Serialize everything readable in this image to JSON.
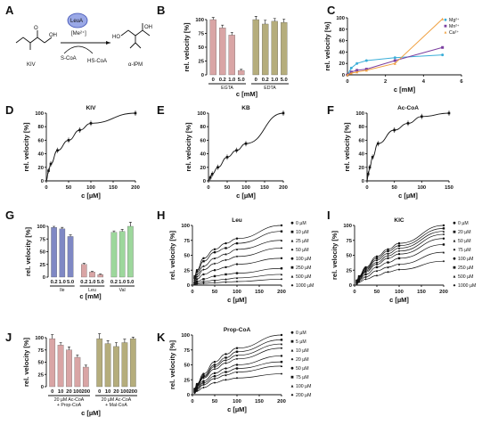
{
  "panel_A": {
    "letter": "A",
    "substrate_label": "KIV",
    "enzyme_label": "LeuA",
    "cofactor_label": "[Me²⁺]",
    "cosubstrate_label": "S-CoA",
    "coproduct_label": "HS-CoA",
    "product_label": "α-IPM",
    "ho_label": "HO",
    "o_label": "O",
    "oh_label": "OH"
  },
  "chart_data": [
    {
      "id": "B",
      "type": "bar",
      "letter": "B",
      "ylabel": "rel. velocity [%]",
      "xlabel": "c [mM]",
      "ylim": [
        0,
        100
      ],
      "yticks": [
        0,
        25,
        50,
        75,
        100
      ],
      "categories": [
        "0",
        "0.2",
        "1.0",
        "5.0",
        "0",
        "0.2",
        "1.0",
        "5.0"
      ],
      "values": [
        100,
        85,
        72,
        8,
        100,
        92,
        97,
        95
      ],
      "errors": [
        4,
        5,
        5,
        2,
        6,
        7,
        5,
        6
      ],
      "bar_colors": [
        "#d9a5a5",
        "#d9a5a5",
        "#d9a5a5",
        "#d9a5a5",
        "#b5ad7c",
        "#b5ad7c",
        "#b5ad7c",
        "#b5ad7c"
      ],
      "group_labels": [
        "EGTA",
        "EDTA"
      ]
    },
    {
      "id": "C",
      "type": "line",
      "letter": "C",
      "ylabel": "rel. velocity [%]",
      "xlabel": "c [mM]",
      "xlim": [
        0,
        6
      ],
      "ylim": [
        0,
        100
      ],
      "xticks": [
        0,
        2,
        4,
        6
      ],
      "yticks": [
        0,
        20,
        40,
        60,
        80,
        100
      ],
      "legend_position": "top-right",
      "x": [
        0,
        0.2,
        0.5,
        1,
        2.5,
        5
      ],
      "series": [
        {
          "name": "Mg²⁺",
          "color": "#3aaed8",
          "values": [
            0,
            12,
            20,
            25,
            30,
            35
          ]
        },
        {
          "name": "Mn²⁺",
          "color": "#7b3fa0",
          "values": [
            0,
            5,
            8,
            10,
            25,
            48
          ]
        },
        {
          "name": "Ca²⁺",
          "color": "#f0a040",
          "values": [
            0,
            3,
            5,
            8,
            20,
            98
          ]
        }
      ]
    },
    {
      "id": "D",
      "type": "scatter",
      "letter": "D",
      "title": "KIV",
      "ylabel": "rel. velocity [%]",
      "xlabel": "c [µM]",
      "xlim": [
        0,
        200
      ],
      "ylim": [
        0,
        100
      ],
      "xticks": [
        0,
        50,
        100,
        150,
        200
      ],
      "yticks": [
        0,
        20,
        40,
        60,
        80,
        100
      ],
      "x": [
        5,
        10,
        25,
        50,
        75,
        100,
        200
      ],
      "values": [
        15,
        25,
        45,
        60,
        75,
        85,
        100
      ]
    },
    {
      "id": "E",
      "type": "scatter",
      "letter": "E",
      "title": "KB",
      "ylabel": "rel. velocity [%]",
      "xlabel": "c [µM]",
      "xlim": [
        0,
        200
      ],
      "ylim": [
        0,
        100
      ],
      "xticks": [
        0,
        50,
        100,
        150,
        200
      ],
      "yticks": [
        0,
        20,
        40,
        60,
        80,
        100
      ],
      "x": [
        5,
        10,
        25,
        50,
        75,
        100,
        200
      ],
      "values": [
        5,
        10,
        20,
        35,
        45,
        55,
        100
      ]
    },
    {
      "id": "F",
      "type": "scatter",
      "letter": "F",
      "title": "Ac-CoA",
      "ylabel": "rel. velocity [%]",
      "xlabel": "c [µM]",
      "xlim": [
        0,
        150
      ],
      "ylim": [
        0,
        100
      ],
      "xticks": [
        0,
        50,
        100,
        150
      ],
      "yticks": [
        0,
        20,
        40,
        60,
        80,
        100
      ],
      "x": [
        2,
        5,
        10,
        20,
        50,
        75,
        100,
        150
      ],
      "values": [
        10,
        20,
        35,
        55,
        75,
        85,
        95,
        100
      ]
    },
    {
      "id": "G",
      "type": "bar",
      "letter": "G",
      "ylabel": "rel. velocity [%]",
      "xlabel": "c [mM]",
      "ylim": [
        0,
        100
      ],
      "yticks": [
        0,
        25,
        50,
        75,
        100
      ],
      "categories": [
        "0.2",
        "1.0",
        "5.0",
        "0.2",
        "1.0",
        "5.0",
        "0.2",
        "1.0",
        "5.0"
      ],
      "values": [
        98,
        95,
        80,
        25,
        10,
        5,
        88,
        90,
        100
      ],
      "errors": [
        2,
        3,
        3,
        2,
        1,
        1,
        3,
        4,
        8
      ],
      "bar_colors": [
        "#7f88c4",
        "#7f88c4",
        "#7f88c4",
        "#d9a5a5",
        "#d9a5a5",
        "#d9a5a5",
        "#9dd79c",
        "#9dd79c",
        "#9dd79c"
      ],
      "group_labels": [
        "Ile",
        "Leu",
        "Val"
      ]
    },
    {
      "id": "H",
      "type": "line",
      "letter": "H",
      "title": "Leu",
      "ylabel": "rel. velocity [%]",
      "xlabel": "c [µM]",
      "xlim": [
        0,
        200
      ],
      "ylim": [
        0,
        100
      ],
      "xticks": [
        0,
        50,
        100,
        150,
        200
      ],
      "yticks": [
        0,
        25,
        50,
        75,
        100
      ],
      "legend_position": "right",
      "x": [
        5,
        10,
        25,
        50,
        75,
        100,
        200
      ],
      "series": [
        {
          "name": "0 µM",
          "values": [
            15,
            25,
            45,
            60,
            70,
            78,
            100
          ]
        },
        {
          "name": "10 µM",
          "values": [
            12,
            22,
            40,
            55,
            62,
            70,
            90
          ]
        },
        {
          "name": "25 µM",
          "values": [
            10,
            18,
            32,
            45,
            52,
            60,
            75
          ]
        },
        {
          "name": "50 µM",
          "values": [
            8,
            14,
            26,
            36,
            42,
            48,
            62
          ]
        },
        {
          "name": "100 µM",
          "values": [
            5,
            10,
            18,
            25,
            30,
            35,
            45
          ]
        },
        {
          "name": "250 µM",
          "values": [
            3,
            6,
            10,
            15,
            18,
            20,
            28
          ]
        },
        {
          "name": "500 µM",
          "values": [
            2,
            4,
            6,
            8,
            10,
            12,
            18
          ]
        },
        {
          "name": "1000 µM",
          "values": [
            1,
            2,
            3,
            4,
            5,
            6,
            10
          ]
        }
      ]
    },
    {
      "id": "I",
      "type": "line",
      "letter": "I",
      "title": "KIC",
      "ylabel": "rel. velocity [%]",
      "xlabel": "c [µM]",
      "xlim": [
        0,
        200
      ],
      "ylim": [
        0,
        100
      ],
      "xticks": [
        0,
        50,
        100,
        150,
        200
      ],
      "yticks": [
        0,
        25,
        50,
        75,
        100
      ],
      "legend_position": "right",
      "x": [
        5,
        10,
        25,
        50,
        75,
        100,
        200
      ],
      "series": [
        {
          "name": "0 µM",
          "values": [
            8,
            15,
            30,
            48,
            60,
            70,
            100
          ]
        },
        {
          "name": "20 µM",
          "values": [
            7,
            14,
            28,
            45,
            57,
            66,
            95
          ]
        },
        {
          "name": "50 µM",
          "values": [
            6,
            13,
            26,
            42,
            53,
            62,
            90
          ]
        },
        {
          "name": "75 µM",
          "values": [
            5,
            12,
            24,
            38,
            49,
            57,
            85
          ]
        },
        {
          "name": "100 µM",
          "values": [
            5,
            10,
            22,
            35,
            45,
            52,
            78
          ]
        },
        {
          "name": "250 µM",
          "values": [
            4,
            9,
            18,
            30,
            38,
            45,
            68
          ]
        },
        {
          "name": "500 µM",
          "values": [
            3,
            7,
            14,
            24,
            30,
            35,
            55
          ]
        },
        {
          "name": "1000 µM",
          "values": [
            2,
            5,
            10,
            16,
            22,
            26,
            40
          ]
        }
      ]
    },
    {
      "id": "J",
      "type": "bar",
      "letter": "J",
      "ylabel": "rel. velocity [%]",
      "xlabel": "c [µM]",
      "ylim": [
        0,
        100
      ],
      "yticks": [
        0,
        25,
        50,
        75,
        100
      ],
      "categories": [
        "0",
        "10",
        "20",
        "100",
        "200",
        "0",
        "10",
        "20",
        "100",
        "200"
      ],
      "values": [
        98,
        85,
        75,
        60,
        40,
        98,
        88,
        82,
        90,
        98
      ],
      "errors": [
        8,
        5,
        6,
        5,
        4,
        10,
        6,
        8,
        7,
        3
      ],
      "bar_colors": [
        "#d9a5a5",
        "#d9a5a5",
        "#d9a5a5",
        "#d9a5a5",
        "#d9a5a5",
        "#b5ad7c",
        "#b5ad7c",
        "#b5ad7c",
        "#b5ad7c",
        "#b5ad7c"
      ],
      "group_labels": [
        "20 µM Ac-CoA\n+ Prop-CoA",
        "20 µM Ac-CoA\n+ Mal-CoA"
      ]
    },
    {
      "id": "K",
      "type": "line",
      "letter": "K",
      "title": "Prop-CoA",
      "ylabel": "rel. velocity [%]",
      "xlabel": "c [µM]",
      "xlim": [
        0,
        200
      ],
      "ylim": [
        0,
        100
      ],
      "xticks": [
        0,
        50,
        100,
        150,
        200
      ],
      "yticks": [
        0,
        25,
        50,
        75,
        100
      ],
      "legend_position": "right",
      "x": [
        5,
        10,
        25,
        50,
        75,
        100,
        200
      ],
      "series": [
        {
          "name": "0 µM",
          "values": [
            10,
            18,
            35,
            55,
            68,
            78,
            100
          ]
        },
        {
          "name": "5 µM",
          "values": [
            9,
            16,
            32,
            50,
            62,
            72,
            92
          ]
        },
        {
          "name": "10 µM",
          "values": [
            8,
            15,
            30,
            47,
            58,
            66,
            85
          ]
        },
        {
          "name": "20 µM",
          "values": [
            7,
            14,
            28,
            43,
            53,
            60,
            78
          ]
        },
        {
          "name": "50 µM",
          "values": [
            6,
            12,
            23,
            36,
            44,
            50,
            65
          ]
        },
        {
          "name": "75 µM",
          "values": [
            5,
            10,
            20,
            31,
            38,
            44,
            55
          ]
        },
        {
          "name": "100 µM",
          "values": [
            4,
            8,
            17,
            27,
            33,
            38,
            48
          ]
        },
        {
          "name": "200 µM",
          "values": [
            3,
            6,
            12,
            20,
            25,
            28,
            35
          ]
        }
      ]
    }
  ]
}
